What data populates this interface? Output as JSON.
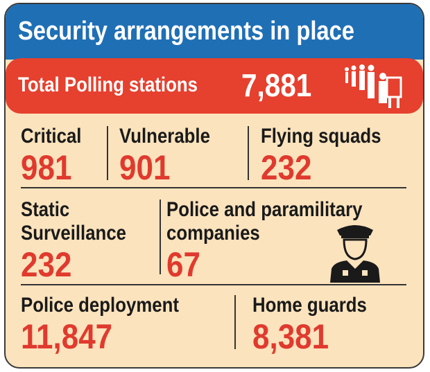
{
  "title": "Security arrangements in place",
  "total": {
    "label": "Total Polling stations",
    "value": "7,881"
  },
  "rows": [
    [
      {
        "label": "Critical",
        "value": "981"
      },
      {
        "label": "Vulnerable",
        "value": "901"
      },
      {
        "label": "Flying squads",
        "value": "232"
      }
    ],
    [
      {
        "label": "Static Surveillance",
        "value": "232"
      },
      {
        "label": "Police and paramilitary companies",
        "value": "67"
      }
    ],
    [
      {
        "label": "Police deployment",
        "value": "11,847"
      },
      {
        "label": "Home guards",
        "value": "8,381"
      }
    ]
  ]
}
